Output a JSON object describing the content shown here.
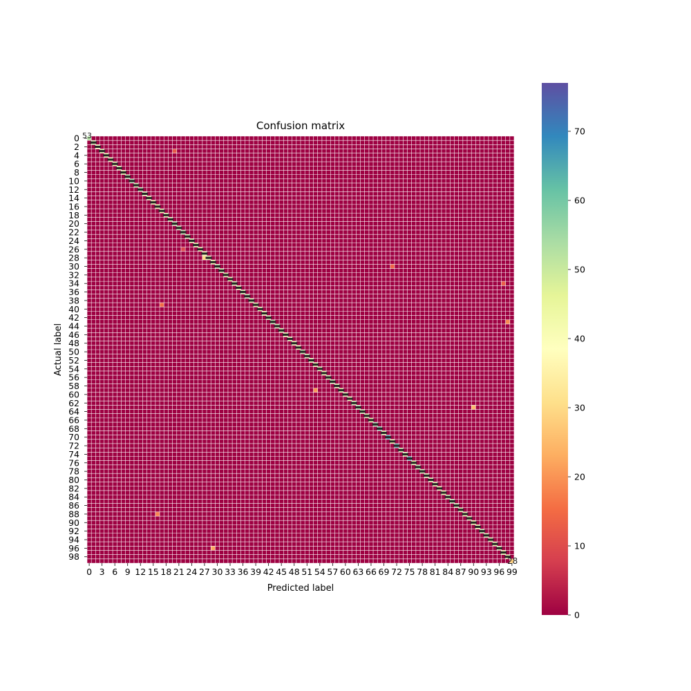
{
  "chart_data": {
    "type": "heatmap",
    "title": "Confusion matrix",
    "xlabel": "Predicted label",
    "ylabel": "Actual label",
    "n_classes": 100,
    "x_tick_labels": [
      "0",
      "3",
      "6",
      "9",
      "12",
      "15",
      "18",
      "21",
      "24",
      "27",
      "30",
      "33",
      "36",
      "39",
      "42",
      "45",
      "48",
      "51",
      "54",
      "57",
      "60",
      "63",
      "66",
      "69",
      "72",
      "75",
      "78",
      "81",
      "84",
      "87",
      "90",
      "93",
      "96",
      "99"
    ],
    "y_tick_labels": [
      "0",
      "2",
      "4",
      "6",
      "8",
      "10",
      "12",
      "14",
      "16",
      "18",
      "20",
      "22",
      "24",
      "26",
      "28",
      "30",
      "32",
      "34",
      "36",
      "38",
      "40",
      "42",
      "44",
      "46",
      "48",
      "50",
      "52",
      "54",
      "56",
      "58",
      "60",
      "62",
      "64",
      "66",
      "68",
      "70",
      "72",
      "74",
      "76",
      "78",
      "80",
      "82",
      "84",
      "86",
      "88",
      "90",
      "92",
      "94",
      "96",
      "98"
    ],
    "colormap": "Spectral",
    "colorbar_range": [
      0,
      77
    ],
    "colorbar_ticks": [
      "0",
      "10",
      "20",
      "30",
      "40",
      "50",
      "60",
      "70"
    ],
    "annotations_visible": [
      "53",
      "28"
    ],
    "diagonal_values_estimate": [
      53,
      50,
      42,
      48,
      46,
      44,
      45,
      48,
      47,
      52,
      55,
      50,
      53,
      49,
      47,
      45,
      46,
      44,
      48,
      50,
      52,
      51,
      53,
      50,
      49,
      47,
      46,
      44,
      48,
      45,
      52,
      50,
      48,
      47,
      49,
      46,
      50,
      52,
      49,
      47,
      48,
      45,
      50,
      53,
      51,
      49,
      47,
      48,
      46,
      45,
      52,
      50,
      48,
      47,
      49,
      46,
      50,
      52,
      49,
      47,
      48,
      45,
      50,
      53,
      51,
      49,
      47,
      55,
      60,
      48,
      66,
      46,
      64,
      50,
      49,
      65,
      47,
      52,
      51,
      49,
      48,
      47,
      46,
      45,
      50,
      53,
      51,
      49,
      47,
      48,
      46,
      45,
      52,
      50,
      48,
      47,
      49,
      46,
      45,
      28
    ],
    "off_diagonal_notable": [
      {
        "actual": 59,
        "predicted": 53,
        "value": 20
      },
      {
        "actual": 96,
        "predicted": 29,
        "value": 22
      },
      {
        "actual": 88,
        "predicted": 16,
        "value": 18
      },
      {
        "actual": 39,
        "predicted": 17,
        "value": 15
      },
      {
        "actual": 43,
        "predicted": 98,
        "value": 19
      },
      {
        "actual": 26,
        "predicted": 22,
        "value": 9
      },
      {
        "actual": 34,
        "predicted": 97,
        "value": 13
      },
      {
        "actual": 3,
        "predicted": 20,
        "value": 12
      },
      {
        "actual": 63,
        "predicted": 90,
        "value": 25
      },
      {
        "actual": 28,
        "predicted": 27,
        "value": 30
      },
      {
        "actual": 30,
        "predicted": 71,
        "value": 14
      }
    ]
  }
}
